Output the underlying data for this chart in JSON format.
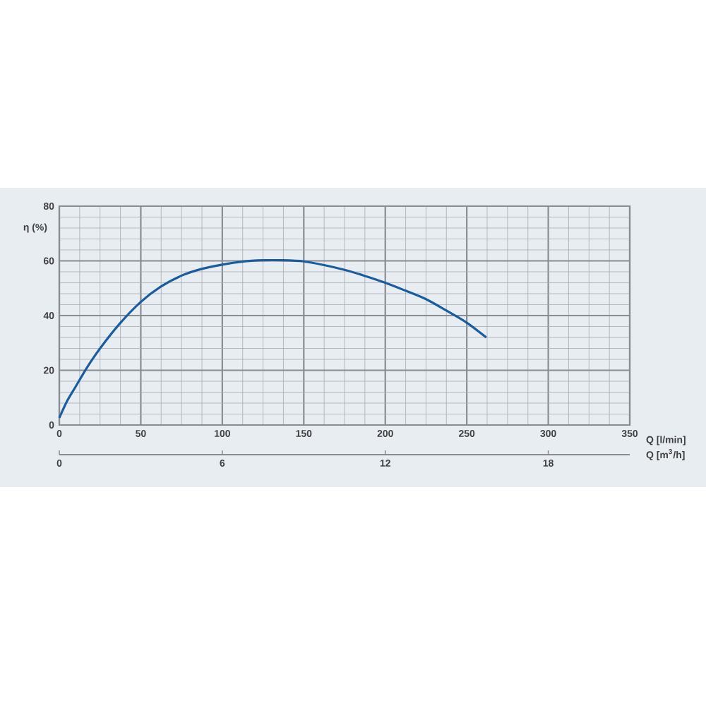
{
  "chart_data": {
    "type": "line",
    "xlabel": "Q [l/min]",
    "ylabel": "η (%)",
    "x2label": "Q [m$^{3}$/h]",
    "x": [
      0,
      5,
      10,
      17,
      25,
      37,
      50,
      62,
      75,
      87,
      100,
      112,
      125,
      137,
      150,
      162,
      175,
      187,
      200,
      212,
      225,
      237,
      250,
      262
    ],
    "values": [
      2.6,
      9,
      14,
      21,
      28,
      37,
      45,
      50.5,
      54.6,
      57,
      58.6,
      59.7,
      60.2,
      60.2,
      59.8,
      58.5,
      56.7,
      54.6,
      52,
      49.2,
      46,
      42,
      37.4,
      32
    ],
    "color": "#1a5c9e",
    "line_style": "solid",
    "marker": "none",
    "xlim": [
      0,
      350
    ],
    "ylim": [
      0,
      80
    ],
    "xticks": [
      0,
      50,
      100,
      150,
      200,
      250,
      300,
      350
    ],
    "yticks": [
      0,
      20,
      40,
      60,
      80
    ],
    "x2lim": [
      0,
      21
    ],
    "x2ticks": [
      0,
      6,
      12,
      18
    ],
    "grid": true
  }
}
